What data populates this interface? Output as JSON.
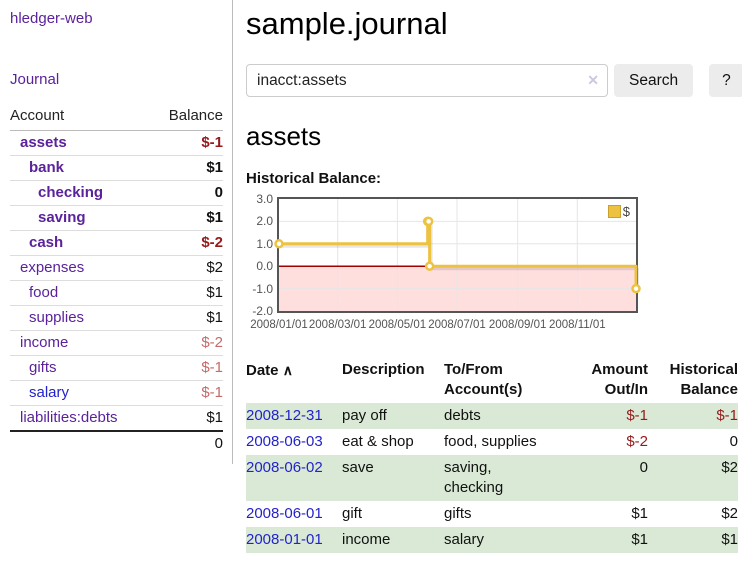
{
  "sidebar": {
    "brand": "hledger-web",
    "nav": [
      {
        "label": "Journal"
      }
    ],
    "accounts_table": {
      "headers": {
        "account": "Account",
        "balance": "Balance"
      },
      "total": "0"
    },
    "accounts": [
      {
        "name": "assets",
        "balance": "$-1",
        "indent": 0,
        "emph": true,
        "link": "purple",
        "tone": "neg-strong"
      },
      {
        "name": "bank",
        "balance": "$1",
        "indent": 1,
        "emph": true,
        "link": "purple",
        "tone": "pos"
      },
      {
        "name": "checking",
        "balance": "0",
        "indent": 2,
        "emph": true,
        "link": "purple",
        "tone": "pos"
      },
      {
        "name": "saving",
        "balance": "$1",
        "indent": 2,
        "emph": true,
        "link": "purple",
        "tone": "pos"
      },
      {
        "name": "cash",
        "balance": "$-2",
        "indent": 1,
        "emph": true,
        "link": "purple",
        "tone": "neg-strong"
      },
      {
        "name": "expenses",
        "balance": "$2",
        "indent": 0,
        "emph": false,
        "link": "purple",
        "tone": "pos"
      },
      {
        "name": "food",
        "balance": "$1",
        "indent": 1,
        "emph": false,
        "link": "purple",
        "tone": "pos"
      },
      {
        "name": "supplies",
        "balance": "$1",
        "indent": 1,
        "emph": false,
        "link": "purple",
        "tone": "pos"
      },
      {
        "name": "income",
        "balance": "$-2",
        "indent": 0,
        "emph": false,
        "link": "purple",
        "tone": "neg-soft"
      },
      {
        "name": "gifts",
        "balance": "$-1",
        "indent": 1,
        "emph": false,
        "link": "purple",
        "tone": "neg-soft"
      },
      {
        "name": "salary",
        "balance": "$-1",
        "indent": 1,
        "emph": false,
        "link": "blue",
        "tone": "neg-soft"
      },
      {
        "name": "liabilities:debts",
        "balance": "$1",
        "indent": 0,
        "emph": false,
        "link": "purple",
        "tone": "pos"
      }
    ]
  },
  "header": {
    "title": "sample.journal"
  },
  "search": {
    "query": "inacct:assets",
    "clear_icon": "✕",
    "button": "Search",
    "help_button": "?"
  },
  "account_page": {
    "heading": "assets",
    "chart_label": "Historical Balance:"
  },
  "chart_data": {
    "type": "line",
    "step": true,
    "title": "Historical Balance:",
    "legend_position": "top-right",
    "grid": true,
    "x_type": "date",
    "xlim_days": [
      0,
      365
    ],
    "xticks": [
      {
        "label": "2008/01/01",
        "day": 0
      },
      {
        "label": "2008/03/01",
        "day": 60
      },
      {
        "label": "2008/05/01",
        "day": 121
      },
      {
        "label": "2008/07/01",
        "day": 182
      },
      {
        "label": "2008/09/01",
        "day": 244
      },
      {
        "label": "2008/11/01",
        "day": 305
      }
    ],
    "ylim": [
      -2,
      3
    ],
    "yticks": [
      {
        "label": "3.0",
        "value": 3
      },
      {
        "label": "2.0",
        "value": 2
      },
      {
        "label": "1.0",
        "value": 1
      },
      {
        "label": "0.0",
        "value": 0
      },
      {
        "label": "-1.0",
        "value": -1
      },
      {
        "label": "-2.0",
        "value": -2
      }
    ],
    "series": [
      {
        "name": "$",
        "color": "#edc240",
        "points": [
          {
            "date": "2008-01-01",
            "day": 0,
            "value": 1
          },
          {
            "date": "2008-06-01",
            "day": 152,
            "value": 2
          },
          {
            "date": "2008-06-02",
            "day": 153,
            "value": 2
          },
          {
            "date": "2008-06-03",
            "day": 154,
            "value": 0
          },
          {
            "date": "2008-12-31",
            "day": 365,
            "value": -1
          }
        ]
      }
    ],
    "negative_region_color": "#ffdede",
    "zero_line_color": "#a00000",
    "gridline_color": "#e6e6e6"
  },
  "register": {
    "headers": {
      "date": "Date",
      "sort_arrow": "∧",
      "description": "Description",
      "accounts": "To/From Account(s)",
      "amount": "Amount Out/In",
      "balance": "Historical Balance"
    },
    "rows": [
      {
        "date": "2008-12-31",
        "description": "pay off",
        "accounts": "debts",
        "amount": "$-1",
        "amount_tone": "neg",
        "balance": "$-1",
        "balance_tone": "neg"
      },
      {
        "date": "2008-06-03",
        "description": "eat & shop",
        "accounts": "food, supplies",
        "amount": "$-2",
        "amount_tone": "neg",
        "balance": "0",
        "balance_tone": "pos"
      },
      {
        "date": "2008-06-02",
        "description": "save",
        "accounts": "saving, checking",
        "amount": "0",
        "amount_tone": "pos",
        "balance": "$2",
        "balance_tone": "pos"
      },
      {
        "date": "2008-06-01",
        "description": "gift",
        "accounts": "gifts",
        "amount": "$1",
        "amount_tone": "pos",
        "balance": "$2",
        "balance_tone": "pos"
      },
      {
        "date": "2008-01-01",
        "description": "income",
        "accounts": "salary",
        "amount": "$1",
        "amount_tone": "pos",
        "balance": "$1",
        "balance_tone": "pos"
      }
    ]
  }
}
